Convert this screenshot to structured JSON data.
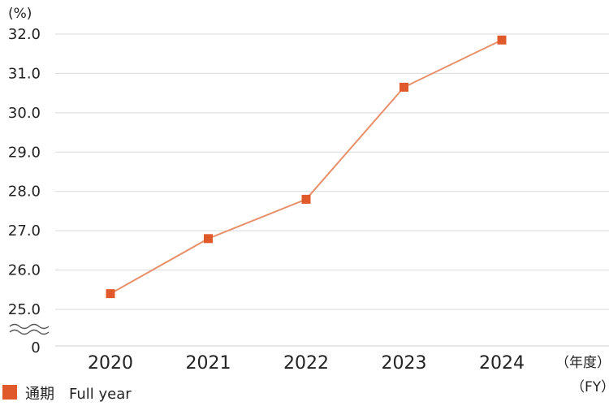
{
  "chart_data": {
    "type": "line",
    "y_unit_label": "(%)",
    "x_unit_label_top": "（年度）",
    "x_unit_label_bottom": "（FY）",
    "categories": [
      "2020",
      "2021",
      "2022",
      "2023",
      "2024"
    ],
    "yticks": [
      "32.0",
      "31.0",
      "30.0",
      "29.0",
      "28.0",
      "27.0",
      "26.0",
      "25.0"
    ],
    "y_zero_label": "0",
    "ylim": [
      25.0,
      32.0
    ],
    "axis_break": true,
    "grid": true,
    "legend_position": "bottom-left",
    "series": [
      {
        "name": "通期　Full year",
        "values": [
          25.4,
          26.8,
          27.8,
          30.65,
          31.85
        ],
        "line_color": "#e8906a",
        "marker_color": "#e0592b"
      }
    ]
  }
}
